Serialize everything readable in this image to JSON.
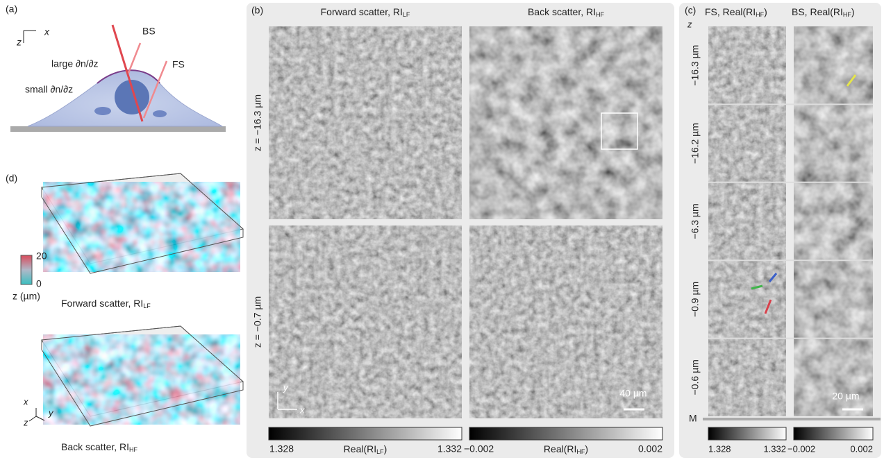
{
  "panel_a": {
    "label": "(a)",
    "axis_z": "z",
    "axis_x": "x",
    "bs": "BS",
    "fs": "FS",
    "large": "large ∂n/∂z",
    "small": "small ∂n/∂z"
  },
  "panel_b": {
    "label": "(b)",
    "col_titles": [
      {
        "text": "Forward scatter, RI",
        "sub": "LF"
      },
      {
        "text": "Back scatter, RI",
        "sub": "HF"
      }
    ],
    "row_labels": [
      "z = −16.3 µm",
      "z = −0.7 µm"
    ],
    "scale_bar": "40 µm",
    "axis_y": "y",
    "axis_x": "x",
    "colorbars": [
      {
        "min": "1.328",
        "max": "1.332",
        "label": "Real(RI",
        "sub": "LF",
        "suffix": ")"
      },
      {
        "min": "−0.002",
        "max": "0.002",
        "label": "Real(RI",
        "sub": "HF",
        "suffix": ")"
      }
    ]
  },
  "panel_c": {
    "label": "(c)",
    "col_titles": [
      {
        "text": "FS, Real(RI",
        "sub": "HF",
        "suffix": ")"
      },
      {
        "text": "BS, Real(RI",
        "sub": "HF",
        "suffix": ")"
      }
    ],
    "axis_z": "z",
    "rows": [
      "−16.3 µm",
      "−16.2 µm",
      "−6.3 µm",
      "−0.9 µm",
      "−0.6 µm"
    ],
    "bottom": "M",
    "scale_bar": "20 µm",
    "colorbars": [
      {
        "min": "1.328",
        "max": "1.332"
      },
      {
        "min": "−0.002",
        "max": "0.002"
      }
    ]
  },
  "panel_d": {
    "label": "(d)",
    "colorbar": {
      "max": "20",
      "min": "0",
      "label": "z (µm)"
    },
    "captions": [
      {
        "text": "Forward scatter, RI",
        "sub": "LF"
      },
      {
        "text": "Back scatter, RI",
        "sub": "HF"
      }
    ],
    "axes": {
      "x": "x",
      "z": "z",
      "y": "y"
    }
  }
}
